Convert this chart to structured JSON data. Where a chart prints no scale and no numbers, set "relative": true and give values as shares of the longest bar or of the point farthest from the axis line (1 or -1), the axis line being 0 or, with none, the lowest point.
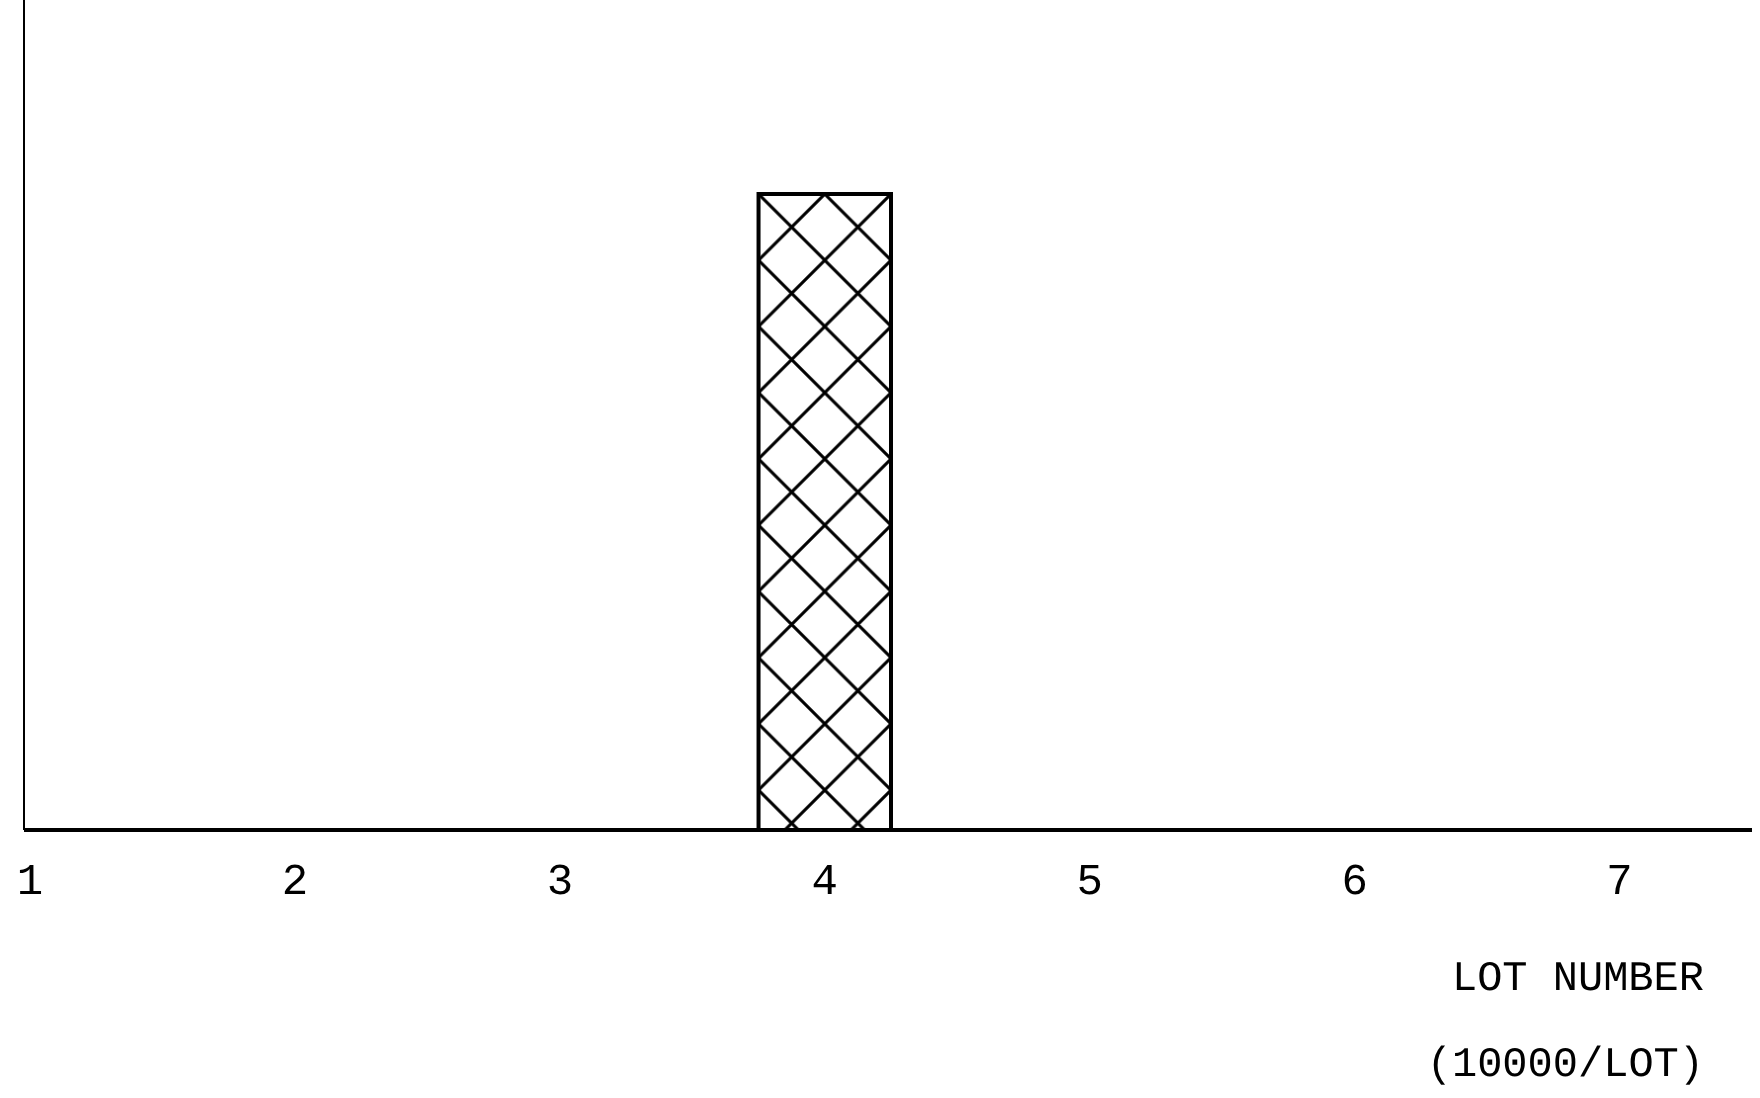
{
  "chart_data": {
    "type": "bar",
    "x": [
      4
    ],
    "values": [
      1
    ],
    "relative": true,
    "color": "#000000",
    "xlim": [
      1,
      7.5
    ],
    "xticks": [
      1,
      2,
      3,
      4,
      5,
      6,
      7
    ],
    "xlabel": "LOT NUMBER\n(10000/LOT)",
    "grid": false
  }
}
